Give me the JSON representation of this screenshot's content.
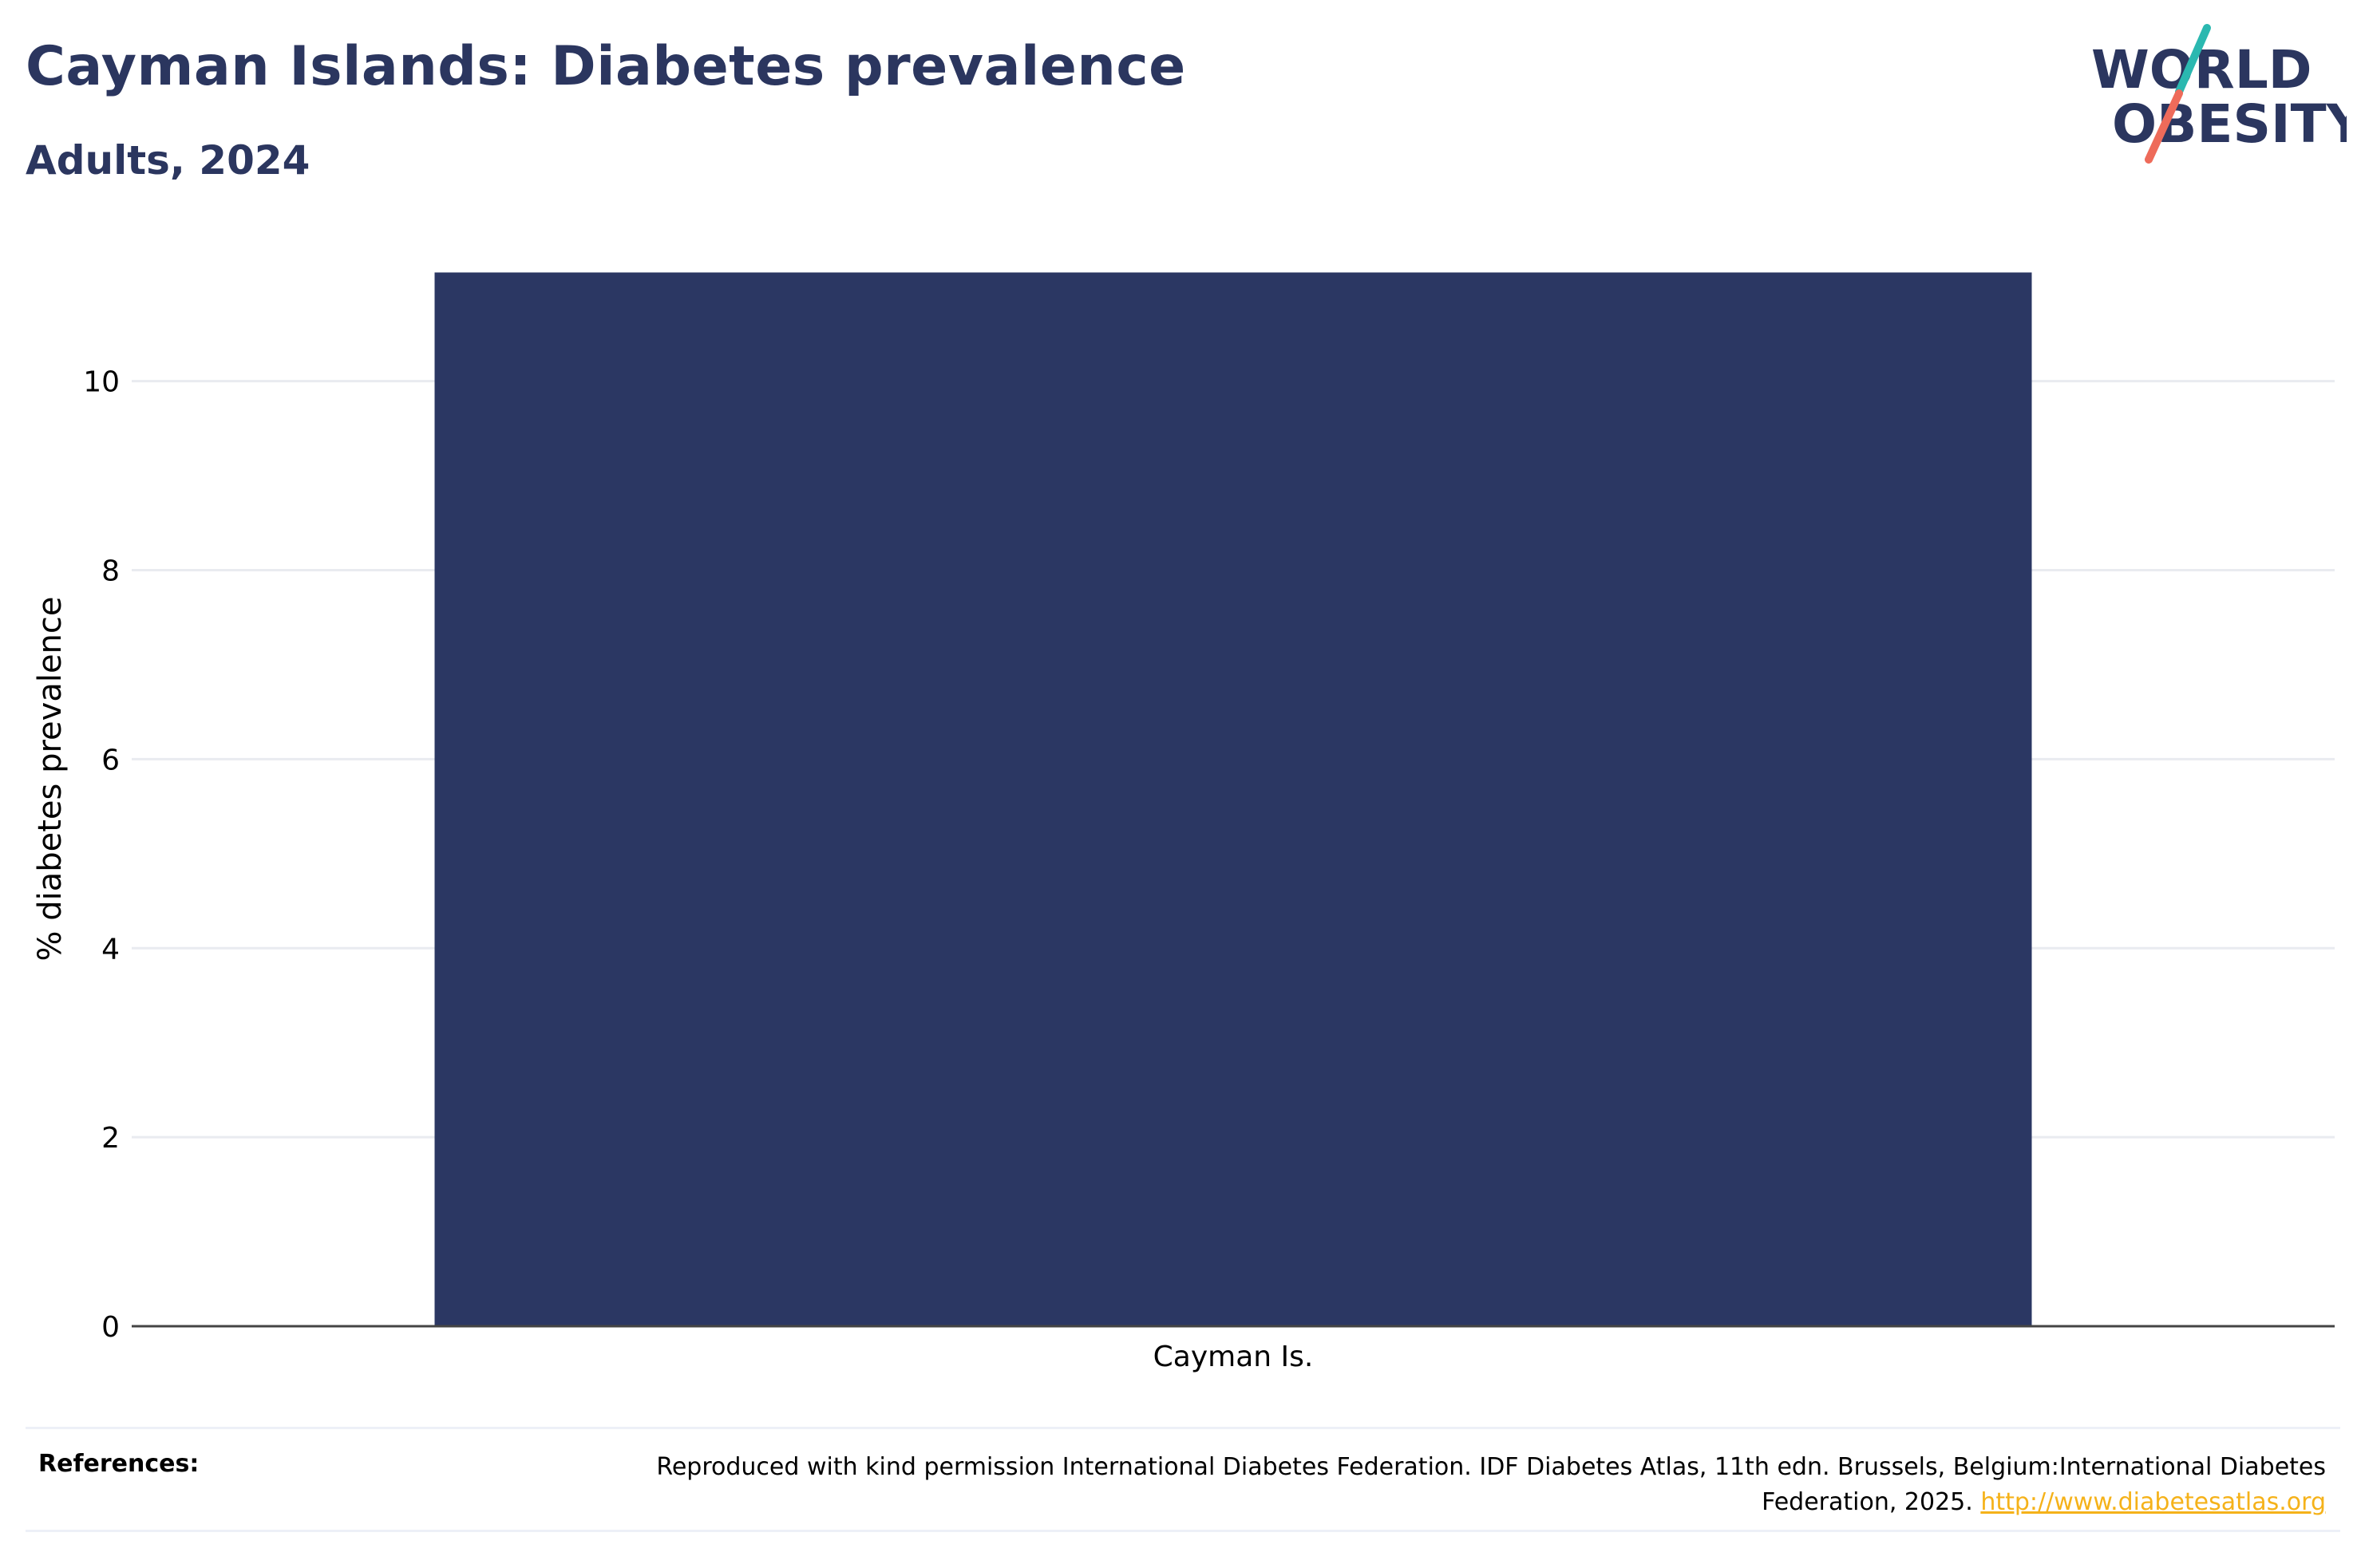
{
  "title": "Cayman Islands: Diabetes prevalence",
  "subtitle": "Adults, 2024",
  "logo": {
    "line1": "WORLD",
    "line2": "OBESITY"
  },
  "colors": {
    "bar": "#2b3763",
    "title": "#2b365f",
    "grid": "#e9ebf0",
    "link": "#f5b21a",
    "logo_teal": "#2bb8b0",
    "logo_coral": "#ee6b5a"
  },
  "chart_data": {
    "type": "bar",
    "categories": [
      "Cayman Is."
    ],
    "values": [
      11.15
    ],
    "ylabel": "% diabetes prevalence",
    "xlabel": "",
    "ylim": [
      0,
      11.5
    ],
    "yticks": [
      0,
      2,
      4,
      6,
      8,
      10
    ],
    "grid": true
  },
  "references": {
    "label": "References:",
    "text": "Reproduced with kind permission International Diabetes Federation. IDF Diabetes Atlas, 11th edn. Brussels, Belgium:International Diabetes Federation, 2025.",
    "link": "http://www.diabetesatlas.org"
  }
}
